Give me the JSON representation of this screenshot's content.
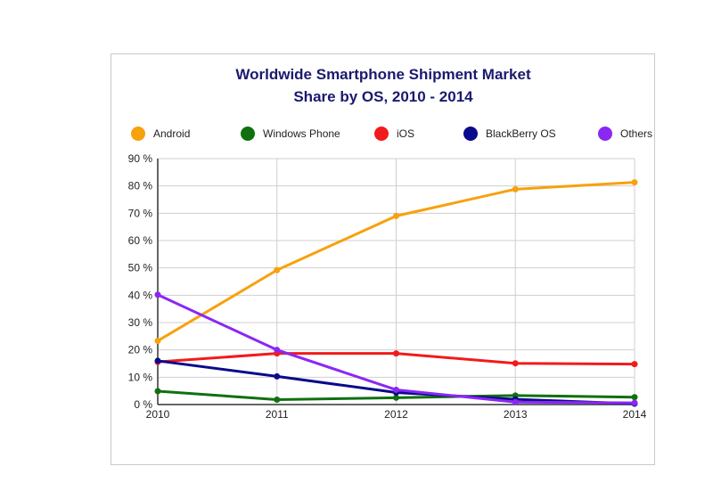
{
  "chart_data": {
    "type": "line",
    "title_lines": [
      "Worldwide Smartphone Shipment Market",
      "Share by OS, 2010 - 2014"
    ],
    "xlabel": "",
    "ylabel": "",
    "x": [
      "2010",
      "2011",
      "2012",
      "2013",
      "2014"
    ],
    "ylim": [
      0,
      90
    ],
    "yticks": [
      "0 %",
      "10 %",
      "20 %",
      "30 %",
      "40 %",
      "50 %",
      "60 %",
      "70 %",
      "80 %",
      "90 %"
    ],
    "grid": true,
    "legend_position": "top",
    "series": [
      {
        "name": "Android",
        "color": "#f7a10c",
        "values": [
          23.3,
          49.2,
          69.0,
          78.8,
          81.3
        ]
      },
      {
        "name": "Windows Phone",
        "color": "#107010",
        "values": [
          4.9,
          1.8,
          2.5,
          3.3,
          2.7
        ]
      },
      {
        "name": "iOS",
        "color": "#f21b1b",
        "values": [
          15.6,
          18.7,
          18.7,
          15.1,
          14.8
        ]
      },
      {
        "name": "BlackBerry OS",
        "color": "#0a0a8c",
        "values": [
          16.0,
          10.3,
          4.4,
          1.9,
          0.3
        ]
      },
      {
        "name": "Others",
        "color": "#8b27f5",
        "values": [
          40.2,
          20.0,
          5.4,
          0.9,
          0.6
        ]
      }
    ]
  }
}
